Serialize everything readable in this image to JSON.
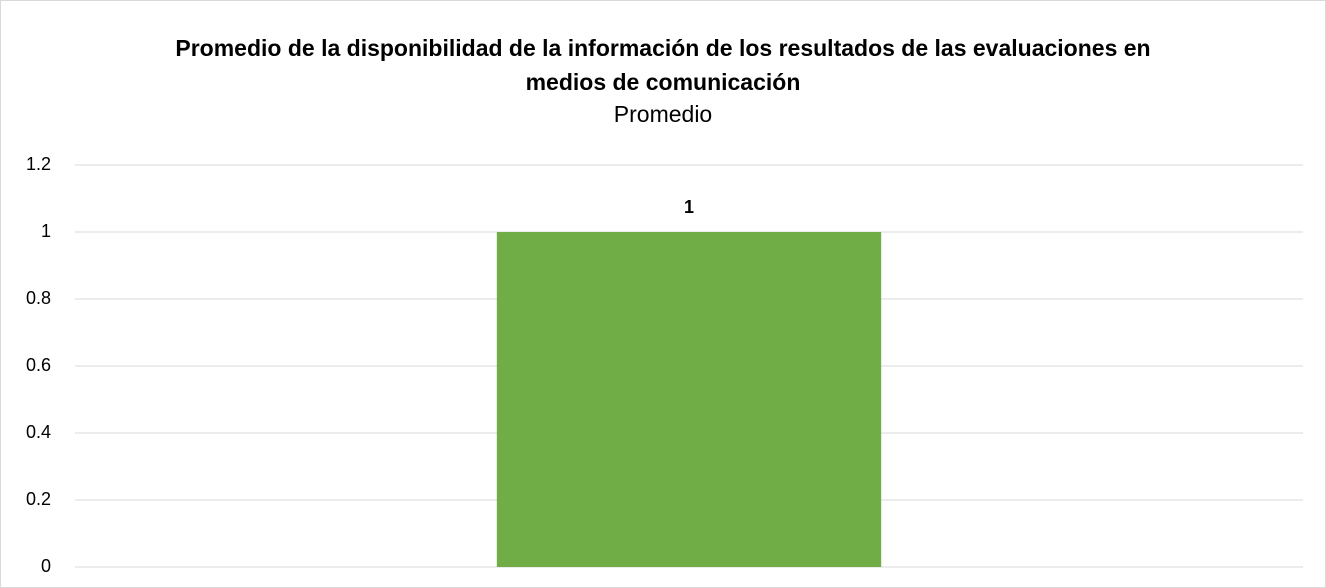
{
  "chart_data": {
    "type": "bar",
    "title": "Promedio de la disponibilidad de la información de los resultados de las evaluaciones en medios de comunicación",
    "subtitle": "Promedio",
    "categories": [
      null
    ],
    "values": [
      1
    ],
    "color": "#70ad47",
    "ylim": [
      0,
      1.2
    ],
    "yticks": [
      0,
      0.2,
      0.4,
      0.6,
      0.8,
      1,
      1.2
    ],
    "grid": true
  }
}
